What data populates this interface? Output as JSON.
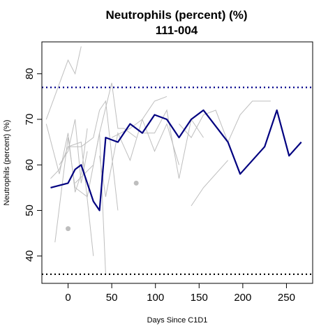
{
  "chart_data": {
    "type": "line",
    "title": "Neutrophils (percent) (%)",
    "subtitle": "111-004",
    "xlabel": "Days Since C1D1",
    "ylabel": "Neutrophils (percent) (%)",
    "xlim": [
      -30,
      280
    ],
    "ylim": [
      34,
      87
    ],
    "xticks": [
      0,
      50,
      100,
      150,
      200,
      250
    ],
    "yticks": [
      40,
      50,
      60,
      70,
      80
    ],
    "reference_lines": [
      {
        "y": 77,
        "style": "dotted",
        "color": "#00008b"
      },
      {
        "y": 36,
        "style": "dotted",
        "color": "#000000"
      }
    ],
    "highlight_series": {
      "color": "#000080",
      "x": [
        -20,
        0,
        8,
        15,
        29,
        36,
        43,
        57,
        71,
        85,
        99,
        113,
        127,
        141,
        155,
        183,
        197,
        225,
        239,
        253,
        267
      ],
      "y": [
        55,
        56,
        59,
        60,
        52,
        50,
        66,
        65,
        69,
        67,
        71,
        70,
        66,
        70,
        72,
        65,
        58,
        64,
        72,
        62,
        65
      ]
    },
    "background_series": {
      "color": "#bebebe",
      "lines": [
        {
          "x": [
            -25,
            0,
            8,
            15
          ],
          "y": [
            70,
            83,
            80,
            86
          ]
        },
        {
          "x": [
            -25,
            -10,
            0,
            8,
            15,
            22
          ],
          "y": [
            69,
            58,
            67,
            54,
            58,
            68
          ]
        },
        {
          "x": [
            -20,
            -10,
            0,
            15,
            29
          ],
          "y": [
            57,
            59,
            64,
            65,
            40
          ]
        },
        {
          "x": [
            -15,
            0,
            8,
            22,
            36,
            43
          ],
          "y": [
            43,
            66,
            55,
            53,
            67,
            36
          ]
        },
        {
          "x": [
            -10,
            0,
            8,
            15,
            22
          ],
          "y": [
            60,
            63,
            70,
            56,
            63
          ]
        },
        {
          "x": [
            0,
            15,
            29,
            36,
            43,
            57
          ],
          "y": [
            64,
            64,
            66,
            72,
            74,
            50
          ]
        },
        {
          "x": [
            8,
            29,
            36,
            50,
            57,
            64,
            78
          ],
          "y": [
            56,
            60,
            67,
            78,
            68,
            68,
            66
          ]
        },
        {
          "x": [
            36,
            43,
            57,
            71,
            85,
            99,
            113
          ],
          "y": [
            62,
            53,
            67,
            61,
            70,
            74,
            75
          ]
        },
        {
          "x": [
            50,
            71,
            85,
            99,
            113,
            127
          ],
          "y": [
            66,
            68,
            70,
            63,
            69,
            60
          ]
        },
        {
          "x": [
            85,
            99,
            113,
            127,
            141,
            155
          ],
          "y": [
            67,
            67,
            72,
            57,
            70,
            66
          ]
        },
        {
          "x": [
            127,
            141,
            155,
            169,
            183,
            197,
            211,
            232
          ],
          "y": [
            69,
            66,
            71,
            72,
            65,
            71,
            74,
            74
          ]
        },
        {
          "x": [
            141,
            155,
            183
          ],
          "y": [
            51,
            55,
            61
          ]
        }
      ],
      "points": [
        {
          "x": 0,
          "y": 46
        },
        {
          "x": 78,
          "y": 56
        }
      ]
    }
  }
}
